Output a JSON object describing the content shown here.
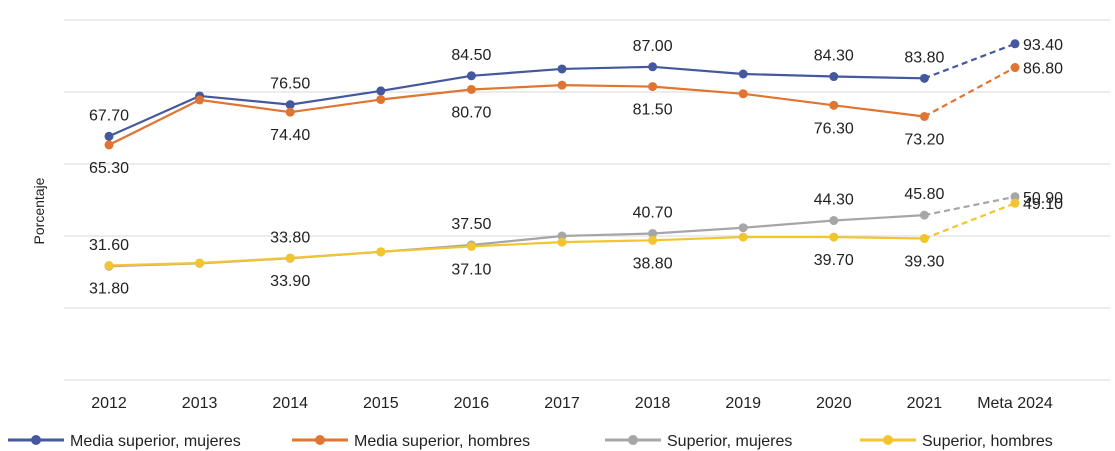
{
  "chart_data": {
    "type": "line",
    "ylabel": "Porcentaje",
    "ylim": [
      0,
      100
    ],
    "categories": [
      "2012",
      "2013",
      "2014",
      "2015",
      "2016",
      "2017",
      "2018",
      "2019",
      "2020",
      "2021",
      "Meta 2024"
    ],
    "legend_position": "bottom",
    "grid": true,
    "series": [
      {
        "name": "Media superior, mujeres",
        "color": "#44589e",
        "values": [
          67.7,
          78.9,
          76.5,
          80.3,
          84.5,
          86.4,
          87.0,
          85.0,
          84.3,
          83.8,
          93.4
        ],
        "labels": [
          "67.70",
          "",
          "76.50",
          "",
          "84.50",
          "",
          "87.00",
          "",
          "84.30",
          "83.80",
          "93.40"
        ],
        "label_pos": [
          "above",
          "",
          "above",
          "",
          "above",
          "",
          "above",
          "",
          "above",
          "above",
          "right"
        ]
      },
      {
        "name": "Media superior, hombres",
        "color": "#e07431",
        "values": [
          65.3,
          77.8,
          74.4,
          77.9,
          80.7,
          81.9,
          81.5,
          79.5,
          76.3,
          73.2,
          86.8
        ],
        "labels": [
          "65.30",
          "",
          "74.40",
          "",
          "80.70",
          "",
          "81.50",
          "",
          "76.30",
          "73.20",
          "86.80"
        ],
        "label_pos": [
          "below",
          "",
          "below",
          "",
          "below",
          "",
          "below",
          "",
          "below",
          "below",
          "right"
        ]
      },
      {
        "name": "Superior, mujeres",
        "color": "#a6a6a6",
        "values": [
          31.6,
          32.4,
          33.8,
          35.6,
          37.5,
          40.0,
          40.7,
          42.3,
          44.3,
          45.8,
          50.9
        ],
        "labels": [
          "31.60",
          "",
          "33.80",
          "",
          "37.50",
          "",
          "40.70",
          "",
          "44.30",
          "45.80",
          "50.90"
        ],
        "label_pos": [
          "above",
          "",
          "above",
          "",
          "above",
          "",
          "above",
          "",
          "above",
          "above",
          "right"
        ]
      },
      {
        "name": "Superior, hombres",
        "color": "#f2c52f",
        "values": [
          31.8,
          32.5,
          33.9,
          35.6,
          37.1,
          38.3,
          38.8,
          39.7,
          39.7,
          39.3,
          49.1
        ],
        "labels": [
          "31.80",
          "",
          "33.90",
          "",
          "37.10",
          "",
          "38.80",
          "",
          "39.70",
          "39.30",
          "49.10"
        ],
        "label_pos": [
          "below",
          "",
          "below",
          "",
          "below",
          "",
          "below",
          "",
          "below",
          "below",
          "right"
        ]
      }
    ]
  }
}
